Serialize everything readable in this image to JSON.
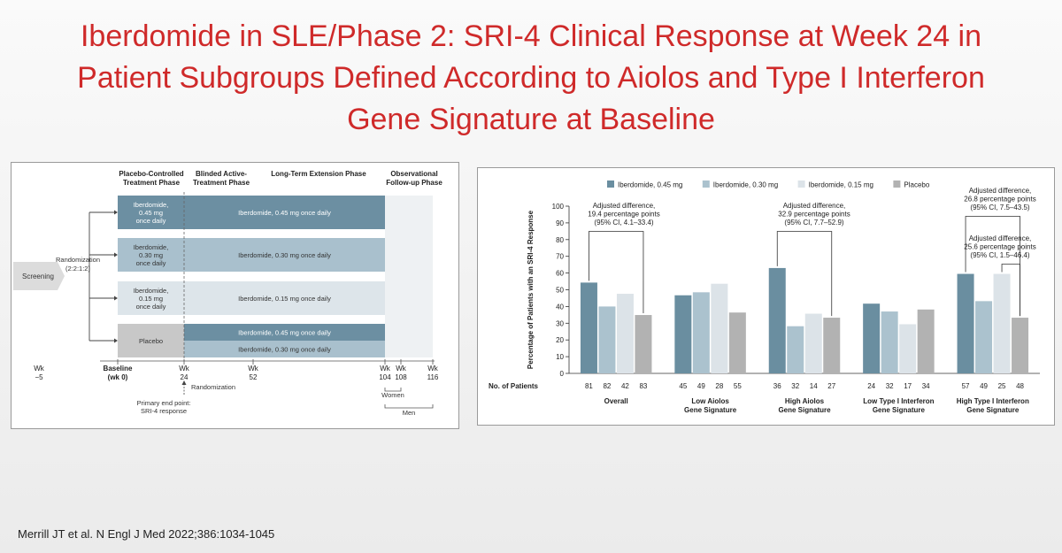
{
  "slide": {
    "title_lines": [
      "Iberdomide in SLE/Phase 2: SRI-4 Clinical Response at Week 24 in",
      "Patient Subgroups Defined According to Aiolos and Type I Interferon",
      "Gene Signature at Baseline"
    ],
    "citation": "Merrill JT et al. N Engl J Med 2022;386:1034-1045"
  },
  "design": {
    "phases": [
      {
        "lines": [
          "Placebo-Controlled",
          "Treatment Phase"
        ]
      },
      {
        "lines": [
          "Blinded Active-",
          "Treatment Phase"
        ]
      },
      {
        "lines": [
          "Long-Term Extension Phase"
        ]
      },
      {
        "lines": [
          "Observational",
          "Follow-up Phase"
        ]
      }
    ],
    "screening": "Screening",
    "randomization": [
      "Randomization",
      "(2:2:1:2)"
    ],
    "arms": [
      {
        "arm": [
          "Iberdomide,",
          "0.45 mg",
          "once daily"
        ],
        "extension": [
          "Iberdomide, 0.45 mg once daily"
        ]
      },
      {
        "arm": [
          "Iberdomide,",
          "0.30 mg",
          "once daily"
        ],
        "extension": [
          "Iberdomide, 0.30 mg once daily"
        ]
      },
      {
        "arm": [
          "Iberdomide,",
          "0.15 mg",
          "once daily"
        ],
        "extension": [
          "Iberdomide, 0.15 mg once daily"
        ]
      },
      {
        "arm": [
          "Placebo"
        ],
        "extension": [
          "Iberdomide, 0.45 mg once daily",
          "Iberdomide, 0.30 mg once daily"
        ]
      }
    ],
    "timeline": [
      {
        "lines": [
          "Wk",
          "−5"
        ]
      },
      {
        "lines": [
          "Baseline",
          "(wk 0)"
        ]
      },
      {
        "lines": [
          "Wk",
          "24"
        ]
      },
      {
        "lines": [
          "Wk",
          "52"
        ]
      },
      {
        "lines": [
          "Wk",
          "104"
        ]
      },
      {
        "lines": [
          "Wk",
          "108"
        ]
      },
      {
        "lines": [
          "Wk",
          "116"
        ]
      }
    ],
    "week24_randomization": "Randomization",
    "primary_end_point": [
      "Primary end point:",
      "SRI-4 response"
    ],
    "women": "Women",
    "men": "Men",
    "colors": {
      "dark": "#6c8fa2",
      "mid": "#a9c0cd",
      "light": "#dde5ea",
      "placebo": "#c8c8c8",
      "observational": "#eef1f3"
    }
  },
  "chart_data": {
    "type": "bar",
    "ylabel": "Percentage of Patients with an SRI-4 Response",
    "ylim": [
      0,
      100
    ],
    "yticks": [
      0,
      10,
      20,
      30,
      40,
      50,
      60,
      70,
      80,
      90,
      100
    ],
    "legend_position": "top",
    "patients_label": "No. of Patients",
    "categories": [
      [
        "Overall"
      ],
      [
        "Low Aiolos",
        "Gene Signature"
      ],
      [
        "High Aiolos",
        "Gene Signature"
      ],
      [
        "Low Type I Interferon",
        "Gene Signature"
      ],
      [
        "High Type I Interferon",
        "Gene Signature"
      ]
    ],
    "series": [
      {
        "name": "Iberdomide, 0.45 mg",
        "color": "#6a8ea0",
        "values": [
          54.3,
          46.7,
          63.0,
          41.7,
          59.5
        ],
        "n": [
          81,
          45,
          36,
          24,
          57
        ]
      },
      {
        "name": "Iberdomide, 0.30 mg",
        "color": "#abc2ce",
        "values": [
          40.0,
          48.5,
          28.2,
          37.0,
          43.2
        ],
        "n": [
          82,
          49,
          32,
          32,
          49
        ]
      },
      {
        "name": "Iberdomide, 0.15 mg",
        "color": "#dce3e8",
        "values": [
          47.6,
          53.6,
          35.7,
          29.4,
          59.5
        ],
        "n": [
          42,
          28,
          14,
          17,
          25
        ]
      },
      {
        "name": "Placebo",
        "color": "#b2b2b2",
        "values": [
          34.9,
          36.4,
          33.3,
          38.2,
          33.3
        ],
        "n": [
          83,
          55,
          27,
          34,
          48
        ]
      }
    ],
    "annotations": [
      {
        "lines": [
          "Adjusted difference,",
          "19.4 percentage points",
          "(95% CI, 4.1–33.4)"
        ],
        "group": 0,
        "from": 0,
        "to": 3
      },
      {
        "lines": [
          "Adjusted difference,",
          "32.9 percentage points",
          "(95% CI, 7.7–52.9)"
        ],
        "group": 2,
        "from": 0,
        "to": 3
      },
      {
        "lines": [
          "Adjusted difference,",
          "26.8 percentage points",
          "(95% CI, 7.5–43.5)"
        ],
        "group": 4,
        "from": 0,
        "to": 3
      },
      {
        "lines": [
          "Adjusted difference,",
          "25.6  percentage points",
          "(95% CI, 1.5–46.4)"
        ],
        "group": 4,
        "from": 2,
        "to": 3
      }
    ]
  }
}
